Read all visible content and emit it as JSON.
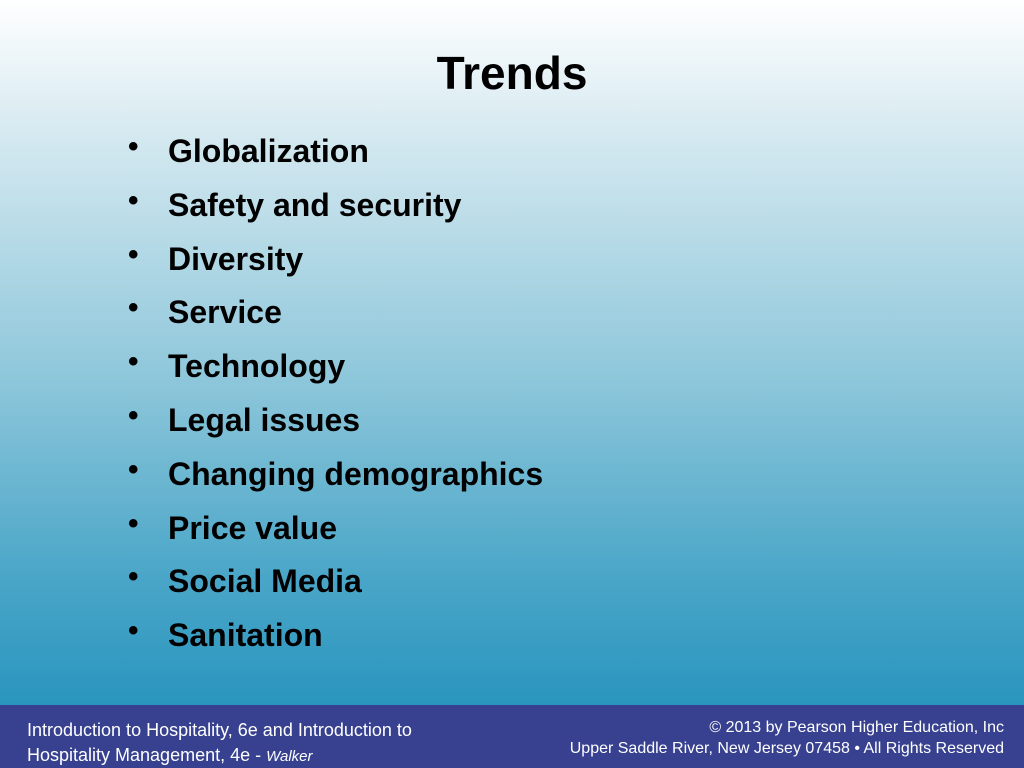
{
  "title": "Trends",
  "bullets": [
    "Globalization",
    "Safety and security",
    "Diversity",
    "Service",
    "Technology",
    "Legal issues",
    "Changing demographics",
    "Price value",
    "Social Media",
    "Sanitation"
  ],
  "footer": {
    "left_line1": "Introduction to Hospitality, 6e and Introduction to",
    "left_line2": "Hospitality Management, 4e - ",
    "left_author": "Walker",
    "right_line1": "© 2013 by Pearson Higher Education, Inc",
    "right_line2": "Upper Saddle River, New Jersey 07458 • All Rights Reserved"
  }
}
